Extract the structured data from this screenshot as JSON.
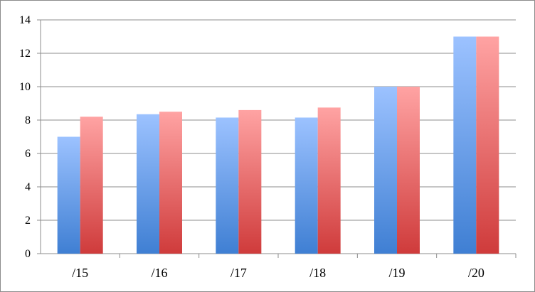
{
  "chart_data": {
    "type": "bar",
    "title": "",
    "xlabel": "",
    "ylabel": "",
    "categories": [
      "/15",
      "/16",
      "/17",
      "/18",
      "/19",
      "/20"
    ],
    "series": [
      {
        "values": [
          7.0,
          8.35,
          8.15,
          8.15,
          10.0,
          13.0
        ],
        "color_top": "#9cc2ff",
        "color_bottom": "#3f7fd3"
      },
      {
        "values": [
          8.2,
          8.5,
          8.6,
          8.75,
          10.0,
          13.0
        ],
        "color_top": "#ffa3a3",
        "color_bottom": "#cf3b3b"
      }
    ],
    "ylim": [
      0,
      14
    ],
    "yticks": [
      0,
      2,
      4,
      6,
      8,
      10,
      12,
      14
    ],
    "ytick_labels": [
      "0",
      "2",
      "4",
      "6",
      "8",
      "10",
      "12",
      "14"
    ],
    "grid": true,
    "legend": "none"
  }
}
